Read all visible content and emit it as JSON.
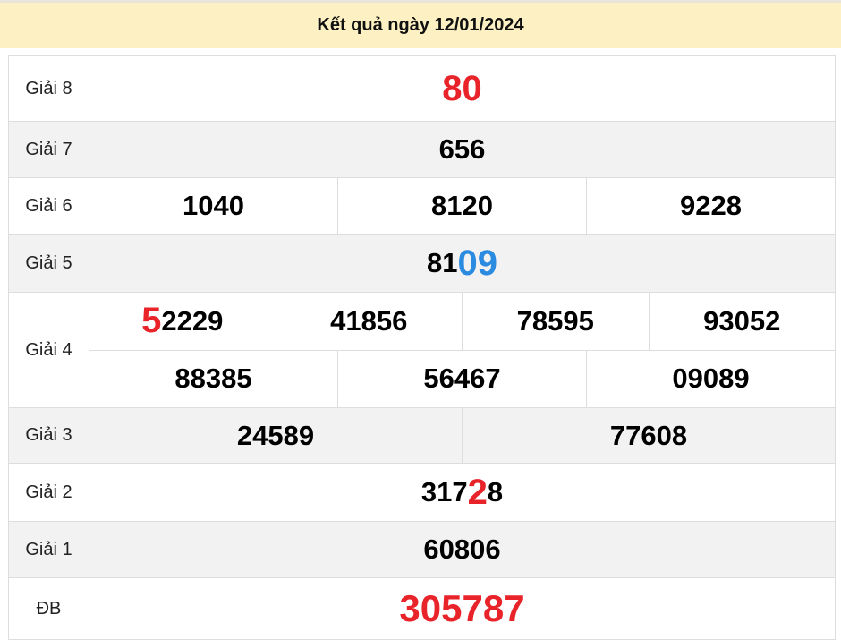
{
  "title": "Kết quả ngày 12/01/2024",
  "colors": {
    "header_bg": "#fdf1c3",
    "highlight_red": "#e8232a",
    "highlight_blue": "#2a8be0",
    "alt_row": "#f2f2f2"
  },
  "prizes": {
    "g8": {
      "label": "Giải 8",
      "value": "80"
    },
    "g7": {
      "label": "Giải 7",
      "value": "656"
    },
    "g6": {
      "label": "Giải 6",
      "values": [
        "1040",
        "8120",
        "9228"
      ]
    },
    "g5": {
      "label": "Giải 5",
      "prefix": "81",
      "highlight": "09"
    },
    "g4": {
      "label": "Giải 4",
      "first": {
        "highlight": "5",
        "rest": "2229"
      },
      "values": [
        "41856",
        "78595",
        "93052",
        "88385",
        "56467",
        "09089"
      ]
    },
    "g3": {
      "label": "Giải 3",
      "values": [
        "24589",
        "77608"
      ]
    },
    "g2": {
      "label": "Giải 2",
      "prefix": "317",
      "highlight": "2",
      "suffix": "8"
    },
    "g1": {
      "label": "Giải 1",
      "value": "60806"
    },
    "db": {
      "label": "ĐB",
      "value": "305787"
    }
  }
}
